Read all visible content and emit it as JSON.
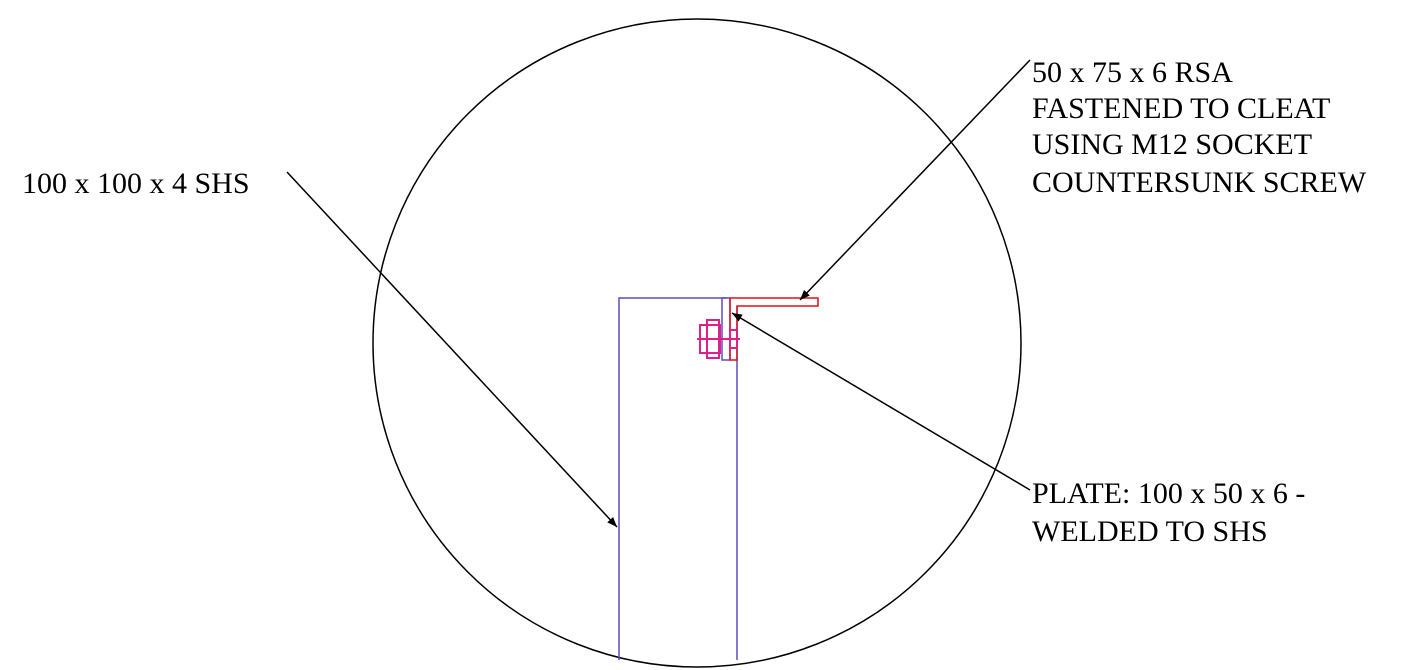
{
  "callouts": [
    {
      "lines": [
        "100 x 100 x 4 SHS"
      ]
    },
    {
      "lines": [
        "50 x 75 x 6 RSA",
        "FASTENED TO CLEAT",
        "USING M12 SOCKET",
        "COUNTERSUNK SCREW"
      ]
    },
    {
      "lines": [
        "PLATE: 100 x 50 x 6 -",
        "WELDED TO SHS"
      ]
    }
  ]
}
